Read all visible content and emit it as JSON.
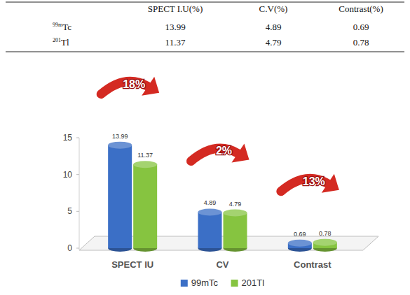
{
  "table": {
    "columns": [
      "SPECT I.U(%)",
      "C.V(%)",
      "Contrast(%)"
    ],
    "rows": [
      {
        "label": {
          "sup": "99m",
          "base": "Tc"
        },
        "cells": [
          13.99,
          4.89,
          0.69
        ]
      },
      {
        "label": {
          "sup": "201",
          "base": "Tl"
        },
        "cells": [
          11.37,
          4.79,
          0.78
        ]
      }
    ]
  },
  "chart_data": {
    "type": "bar",
    "categories": [
      "SPECT IU",
      "CV",
      "Contrast"
    ],
    "series": [
      {
        "name": "99mTc",
        "color": "#3b6fc6",
        "values": [
          13.99,
          4.89,
          0.69
        ]
      },
      {
        "name": "201Tl",
        "color": "#86c440",
        "values": [
          11.37,
          4.79,
          0.78
        ]
      }
    ],
    "annotations": [
      "18%",
      "2%",
      "13%"
    ],
    "ylim": [
      0,
      15
    ],
    "yticks": [
      0,
      5,
      10,
      15
    ],
    "grid": false,
    "data_labels": true,
    "legend": "bottom"
  }
}
